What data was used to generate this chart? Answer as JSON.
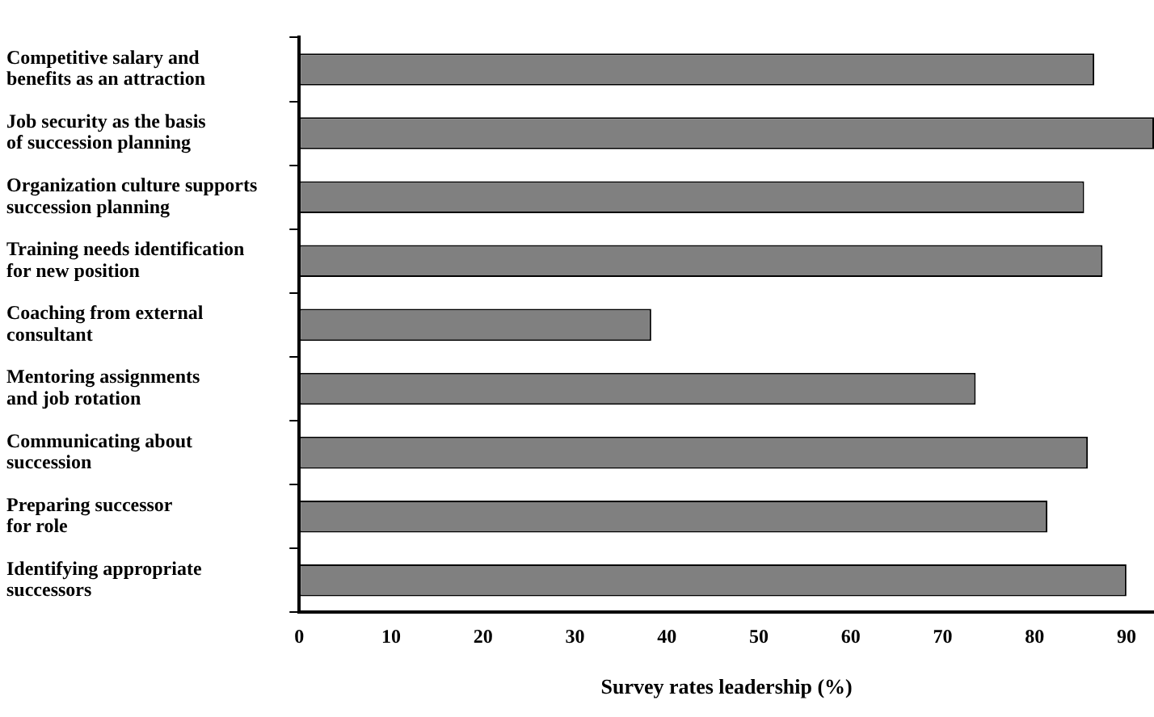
{
  "chart_data": {
    "type": "bar",
    "orientation": "horizontal",
    "xlabel": "Survey rates leadership (%)",
    "categories": [
      "Competitive salary and\nbenefits as an attraction",
      "Job security as the basis\nof succession planning",
      "Organization culture supports\nsuccession planning",
      "Training needs identification\nfor new position",
      "Coaching from external\nconsultant",
      "Mentoring assignments\nand job rotation",
      "Communicating about\nsuccession",
      "Preparing successor\nfor role",
      "Identifying appropriate\nsuccessors"
    ],
    "values": [
      86.5,
      93,
      85.4,
      87.4,
      38.3,
      73.6,
      85.8,
      81.4,
      90
    ],
    "color": "#808080",
    "xlim": [
      0,
      93
    ],
    "xticks": [
      0,
      10,
      20,
      30,
      40,
      50,
      60,
      70,
      80,
      90
    ],
    "grid": false,
    "legend": false
  }
}
